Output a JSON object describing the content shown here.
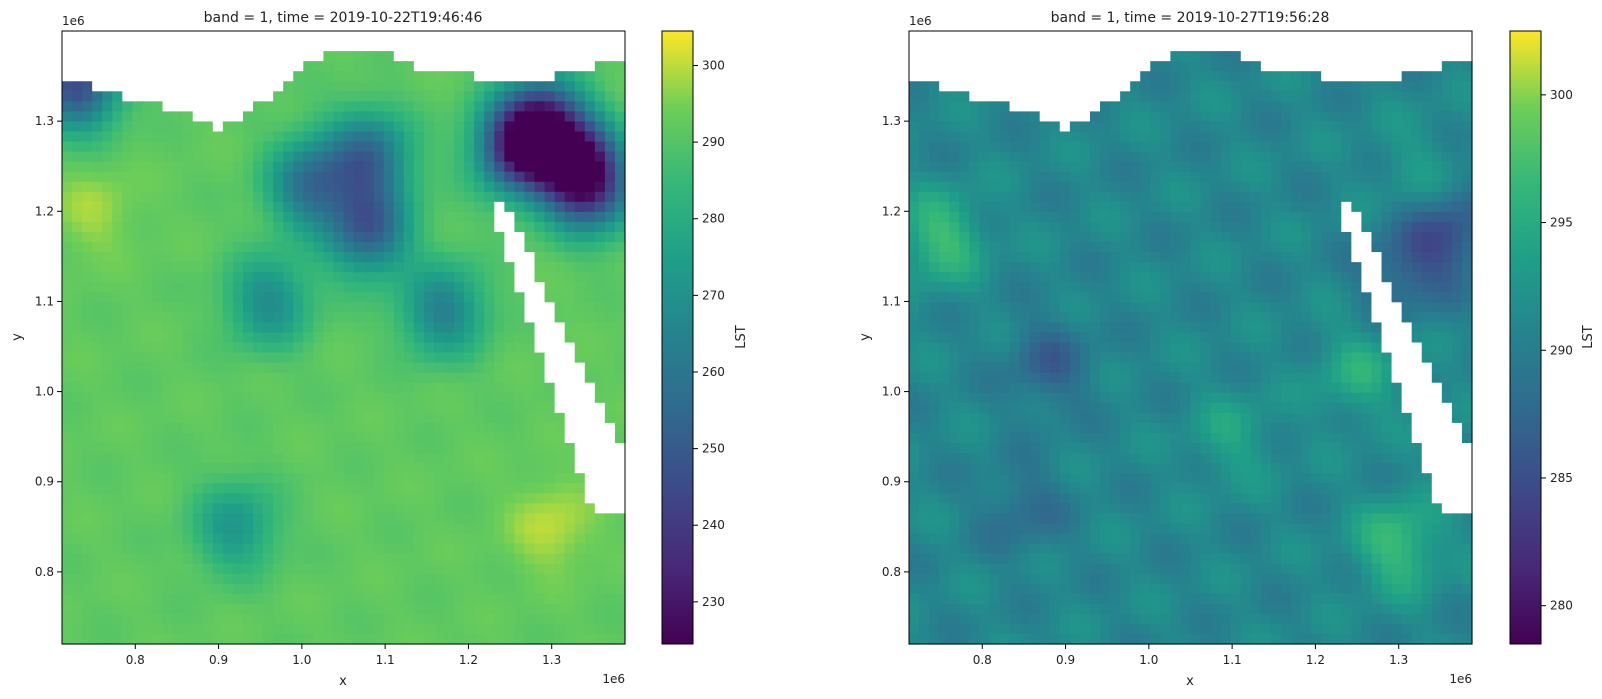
{
  "chart_data": [
    {
      "type": "heatmap",
      "title": "band = 1, time = 2019-10-22T19:46:46",
      "xlabel": "x",
      "ylabel": "y",
      "x_offset_label": "1e6",
      "y_offset_label": "1e6",
      "xlim": [
        0.712,
        1.388
      ],
      "ylim": [
        0.72,
        1.4
      ],
      "xticks": [
        0.8,
        0.9,
        1.0,
        1.1,
        1.2,
        1.3
      ],
      "xtick_labels": [
        "0.8",
        "0.9",
        "1.0",
        "1.1",
        "1.2",
        "1.3"
      ],
      "yticks": [
        0.8,
        0.9,
        1.0,
        1.1,
        1.2,
        1.3
      ],
      "ytick_labels": [
        "0.8",
        "0.9",
        "1.0",
        "1.1",
        "1.2",
        "1.3"
      ],
      "colorbar": {
        "label": "LST",
        "colormap": "viridis",
        "range": [
          224.5,
          304.5
        ],
        "ticks": [
          230,
          240,
          250,
          260,
          270,
          280,
          290,
          300
        ],
        "tick_labels": [
          "230",
          "240",
          "250",
          "260",
          "270",
          "280",
          "290",
          "300"
        ]
      },
      "field": {
        "base": 292,
        "cold_spots": [
          {
            "x": 1.26,
            "y": 1.27,
            "value": 238
          },
          {
            "x": 1.33,
            "y": 1.25,
            "value": 232
          },
          {
            "x": 1.29,
            "y": 1.3,
            "value": 244
          },
          {
            "x": 1.08,
            "y": 1.26,
            "value": 256
          },
          {
            "x": 1.01,
            "y": 1.23,
            "value": 258
          },
          {
            "x": 0.73,
            "y": 1.34,
            "value": 246
          },
          {
            "x": 1.08,
            "y": 1.18,
            "value": 252
          },
          {
            "x": 0.96,
            "y": 1.1,
            "value": 268
          },
          {
            "x": 0.92,
            "y": 0.85,
            "value": 272
          },
          {
            "x": 1.17,
            "y": 1.09,
            "value": 264
          },
          {
            "x": 1.35,
            "y": 1.22,
            "value": 262
          }
        ],
        "warm_spots": [
          {
            "x": 1.3,
            "y": 0.85,
            "value": 300
          },
          {
            "x": 0.75,
            "y": 1.2,
            "value": 298
          }
        ]
      }
    },
    {
      "type": "heatmap",
      "title": "band = 1, time = 2019-10-27T19:56:28",
      "xlabel": "x",
      "ylabel": "y",
      "x_offset_label": "1e6",
      "y_offset_label": "1e6",
      "xlim": [
        0.712,
        1.388
      ],
      "ylim": [
        0.72,
        1.4
      ],
      "xticks": [
        0.8,
        0.9,
        1.0,
        1.1,
        1.2,
        1.3
      ],
      "xtick_labels": [
        "0.8",
        "0.9",
        "1.0",
        "1.1",
        "1.2",
        "1.3"
      ],
      "yticks": [
        0.8,
        0.9,
        1.0,
        1.1,
        1.2,
        1.3
      ],
      "ytick_labels": [
        "0.8",
        "0.9",
        "1.0",
        "1.1",
        "1.2",
        "1.3"
      ],
      "colorbar": {
        "label": "LST",
        "colormap": "viridis",
        "range": [
          278.5,
          302.5
        ],
        "ticks": [
          280,
          285,
          290,
          295,
          300
        ],
        "tick_labels": [
          "280",
          "285",
          "290",
          "295",
          "300"
        ]
      },
      "field": {
        "base": 291,
        "cold_spots": [
          {
            "x": 0.88,
            "y": 1.03,
            "value": 287
          },
          {
            "x": 1.36,
            "y": 1.17,
            "value": 285
          },
          {
            "x": 1.3,
            "y": 1.13,
            "value": 287
          },
          {
            "x": 0.85,
            "y": 0.87,
            "value": 288
          }
        ],
        "warm_spots": [
          {
            "x": 0.75,
            "y": 1.17,
            "value": 297
          },
          {
            "x": 1.3,
            "y": 0.83,
            "value": 297
          },
          {
            "x": 1.25,
            "y": 1.02,
            "value": 295
          },
          {
            "x": 1.1,
            "y": 0.95,
            "value": 294
          },
          {
            "x": 1.32,
            "y": 1.25,
            "value": 293
          }
        ]
      }
    }
  ]
}
